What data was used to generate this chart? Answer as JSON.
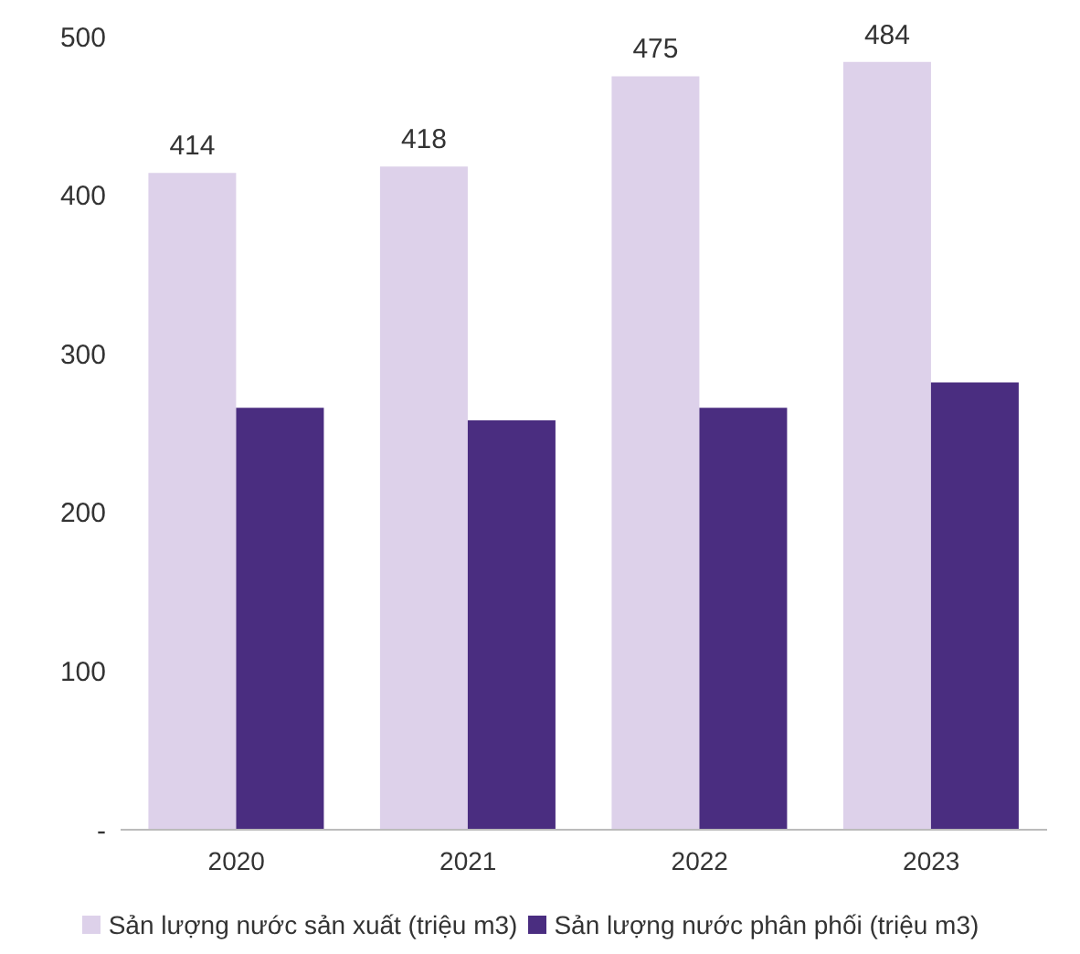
{
  "chart_data": {
    "type": "bar",
    "categories": [
      "2020",
      "2021",
      "2022",
      "2023"
    ],
    "series": [
      {
        "name": "Sản lượng nước sản xuất (triệu m3)",
        "color": "#ddd1ea",
        "values": [
          414,
          418,
          475,
          484
        ],
        "value_labels": [
          "414",
          "418",
          "475",
          "484"
        ]
      },
      {
        "name": "Sản lượng nước phân phối (triệu m3)",
        "color": "#4a2d80",
        "values": [
          266,
          258,
          266,
          282
        ]
      }
    ],
    "ylim": [
      0,
      500
    ],
    "yticks": [
      {
        "value": 0,
        "label": "-"
      },
      100,
      200,
      300,
      400,
      500
    ],
    "grid": false,
    "legend": "bottom"
  }
}
